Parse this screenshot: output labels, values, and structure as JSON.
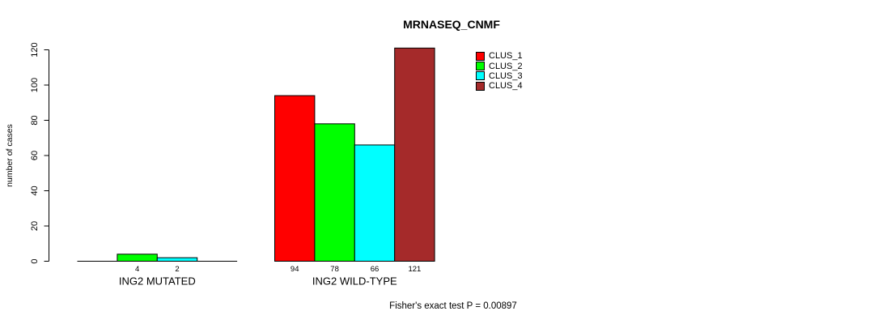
{
  "chart_data": {
    "type": "bar",
    "title": "MRNASEQ_CNMF",
    "ylabel": "number of cases",
    "xlabel": "",
    "ylim": [
      0,
      120
    ],
    "yticks": [
      0,
      20,
      40,
      60,
      80,
      100,
      120
    ],
    "grid": false,
    "legend_position": "top-right",
    "bar_outline_color": "#000000",
    "series": [
      {
        "name": "CLUS_1",
        "color": "#ff0000"
      },
      {
        "name": "CLUS_2",
        "color": "#00ff00"
      },
      {
        "name": "CLUS_3",
        "color": "#00ffff"
      },
      {
        "name": "CLUS_4",
        "color": "#a52a2a"
      }
    ],
    "groups": [
      {
        "label": "ING2 MUTATED",
        "values": [
          0,
          4,
          2,
          0
        ]
      },
      {
        "label": "ING2 WILD-TYPE",
        "values": [
          94,
          78,
          66,
          121
        ]
      }
    ],
    "annotation": "Fisher's exact test P = 0.00897"
  }
}
